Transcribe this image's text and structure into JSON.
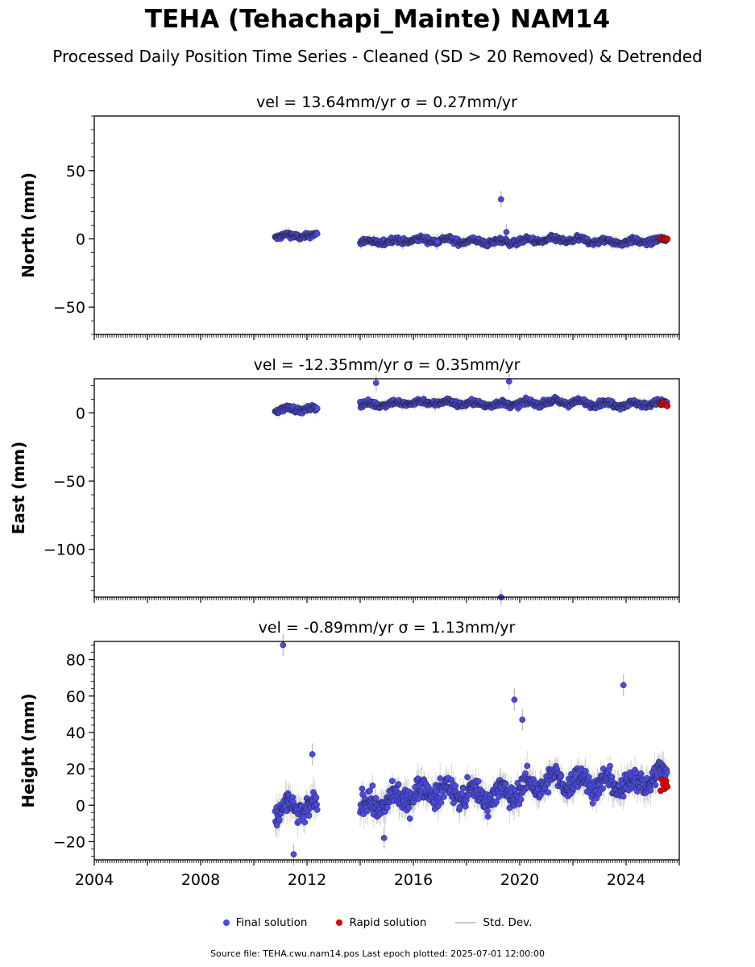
{
  "title": "TEHA (Tehachapi_Mainte) NAM14",
  "subtitle": "Processed Daily Position Time Series - Cleaned (SD > 20 Removed) & Detrended",
  "legend": {
    "final": "Final solution",
    "rapid": "Rapid solution",
    "std": "Std. Dev."
  },
  "source_note": "Source file: TEHA.cwu.nam14.pos  Last epoch plotted: 2025-07-01 12:00:00",
  "colors": {
    "final": "#4a4ae8",
    "rapid": "#e00000",
    "std": "#b8b8b8",
    "edge": "#222222"
  },
  "chart_data": [
    {
      "type": "scatter",
      "panel": "north",
      "title": "vel = 13.64mm/yr   σ = 0.27mm/yr",
      "ylabel": "North (mm)",
      "xlim": [
        2004,
        2026
      ],
      "ylim": [
        -70,
        90
      ],
      "yticks": [
        50,
        0,
        -50
      ],
      "ytick_labels": [
        "50",
        "0",
        "−50"
      ],
      "gaps": [
        [
          2012.4,
          2014.0
        ]
      ],
      "series": [
        {
          "segments": [
            [
              2010.8,
              2012.4,
              1.5
            ],
            [
              2014.0,
              2025.55,
              -1.5
            ]
          ],
          "noise": 2,
          "sigma": 3
        },
        {
          "points": [
            [
              2019.3,
              29
            ],
            [
              2019.5,
              5
            ],
            [
              2016.9,
              -2
            ]
          ]
        }
      ],
      "rapid": {
        "x": [
          2025.3,
          2025.55
        ],
        "y": [
          0,
          0
        ]
      }
    },
    {
      "type": "scatter",
      "panel": "east",
      "title": "vel = -12.35mm/yr   σ = 0.35mm/yr",
      "ylabel": "East (mm)",
      "xlim": [
        2004,
        2026
      ],
      "ylim": [
        -135,
        25
      ],
      "yticks": [
        0,
        -50,
        -100
      ],
      "ytick_labels": [
        "0",
        "−50",
        "−100"
      ],
      "gaps": [
        [
          2012.4,
          2014.0
        ]
      ],
      "series": [
        {
          "segments": [
            [
              2010.8,
              2012.4,
              2
            ],
            [
              2014.0,
              2025.55,
              7
            ]
          ],
          "noise": 2,
          "sigma": 3
        },
        {
          "points": [
            [
              2014.6,
              22
            ],
            [
              2019.6,
              23
            ],
            [
              2019.3,
              -135
            ]
          ]
        }
      ],
      "rapid": {
        "x": [
          2025.3,
          2025.55
        ],
        "y": [
          5,
          8
        ]
      }
    },
    {
      "type": "scatter",
      "panel": "height",
      "title": "vel = -0.89mm/yr   σ = 1.13mm/yr",
      "ylabel": "Height (mm)",
      "xlim": [
        2004,
        2026
      ],
      "ylim": [
        -30,
        90
      ],
      "yticks": [
        80,
        60,
        40,
        20,
        0,
        -20
      ],
      "ytick_labels": [
        "80",
        "60",
        "40",
        "20",
        "0",
        "−20"
      ],
      "xticks": [
        2004,
        2008,
        2012,
        2016,
        2020,
        2024
      ],
      "xtick_labels": [
        "2004",
        "2008",
        "2012",
        "2016",
        "2020",
        "2024"
      ],
      "gaps": [
        [
          2012.4,
          2014.0
        ]
      ],
      "series": [
        {
          "segments": [
            [
              2010.8,
              2012.4,
              -4
            ],
            [
              2014.0,
              2025.55,
              8
            ]
          ],
          "noise": 6,
          "sigma": 6
        },
        {
          "points": [
            [
              2011.1,
              88
            ],
            [
              2019.8,
              58
            ],
            [
              2020.1,
              47
            ],
            [
              2023.9,
              66
            ],
            [
              2011.5,
              -27
            ],
            [
              2012.2,
              28
            ],
            [
              2014.9,
              -18
            ]
          ]
        }
      ],
      "rapid": {
        "x": [
          2025.3,
          2025.55
        ],
        "y": [
          6,
          16
        ]
      }
    }
  ]
}
